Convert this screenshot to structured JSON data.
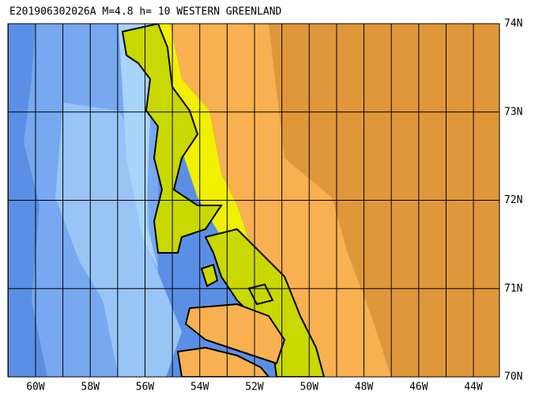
{
  "map": {
    "title": "E201906302026A M=4.8 h= 10 WESTERN GREENLAND",
    "xlim": [
      -61.01,
      -43.05
    ],
    "ylim": [
      70,
      74
    ],
    "xticks": [
      {
        "value": -60,
        "label": "60W"
      },
      {
        "value": -58,
        "label": "58W"
      },
      {
        "value": -56,
        "label": "56W"
      },
      {
        "value": -54,
        "label": "54W"
      },
      {
        "value": -52,
        "label": "52W"
      },
      {
        "value": -50,
        "label": "50W"
      },
      {
        "value": -48,
        "label": "48W"
      },
      {
        "value": -46,
        "label": "46W"
      },
      {
        "value": -44,
        "label": "44W"
      }
    ],
    "xgrid": [
      -61,
      -59,
      -57,
      -55,
      -53,
      -51,
      -49,
      -47,
      -45
    ],
    "yticks": [
      {
        "value": 74,
        "label": "74N"
      },
      {
        "value": 73,
        "label": "73N"
      },
      {
        "value": 72,
        "label": "72N"
      },
      {
        "value": 71,
        "label": "71N"
      },
      {
        "value": 70,
        "label": "70N"
      }
    ]
  }
}
